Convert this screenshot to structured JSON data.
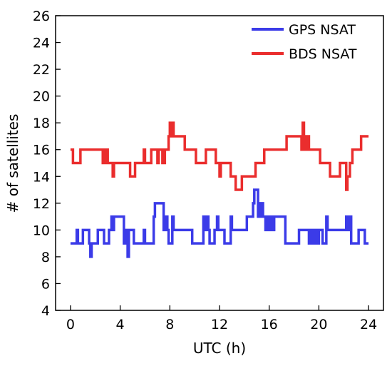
{
  "chart_data": {
    "type": "line",
    "title": "",
    "xlabel": "UTC (h)",
    "ylabel": "# of satellites",
    "xlim": [
      -1.2,
      25.2
    ],
    "ylim": [
      4,
      26
    ],
    "xticks": [
      0,
      4,
      8,
      12,
      16,
      20,
      24
    ],
    "yticks": [
      4,
      6,
      8,
      10,
      12,
      14,
      16,
      18,
      20,
      22,
      24,
      26
    ],
    "grid": false,
    "legend_position": "top-right",
    "series": [
      {
        "name": "GPS NSAT",
        "color": "#3b3be8",
        "points": [
          [
            0,
            9
          ],
          [
            0.5,
            9
          ],
          [
            0.5,
            10
          ],
          [
            0.6,
            10
          ],
          [
            0.6,
            9
          ],
          [
            1.0,
            9
          ],
          [
            1.0,
            10
          ],
          [
            1.5,
            10
          ],
          [
            1.5,
            9
          ],
          [
            1.6,
            9
          ],
          [
            1.6,
            8
          ],
          [
            1.7,
            8
          ],
          [
            1.7,
            9
          ],
          [
            2.2,
            9
          ],
          [
            2.2,
            10
          ],
          [
            2.7,
            10
          ],
          [
            2.7,
            9
          ],
          [
            3.1,
            9
          ],
          [
            3.1,
            10
          ],
          [
            3.3,
            10
          ],
          [
            3.3,
            11
          ],
          [
            3.4,
            11
          ],
          [
            3.4,
            10
          ],
          [
            3.5,
            10
          ],
          [
            3.5,
            11
          ],
          [
            4.3,
            11
          ],
          [
            4.3,
            9
          ],
          [
            4.4,
            9
          ],
          [
            4.4,
            10
          ],
          [
            4.5,
            10
          ],
          [
            4.5,
            9
          ],
          [
            4.6,
            9
          ],
          [
            4.6,
            8
          ],
          [
            4.7,
            8
          ],
          [
            4.7,
            10
          ],
          [
            5.1,
            10
          ],
          [
            5.1,
            9
          ],
          [
            5.9,
            9
          ],
          [
            5.9,
            10
          ],
          [
            6.0,
            10
          ],
          [
            6.0,
            9
          ],
          [
            6.7,
            9
          ],
          [
            6.7,
            11
          ],
          [
            6.8,
            11
          ],
          [
            6.8,
            12
          ],
          [
            7.5,
            12
          ],
          [
            7.5,
            10
          ],
          [
            7.6,
            10
          ],
          [
            7.6,
            11
          ],
          [
            7.8,
            11
          ],
          [
            7.8,
            10
          ],
          [
            7.9,
            10
          ],
          [
            7.9,
            9
          ],
          [
            8.2,
            9
          ],
          [
            8.2,
            11
          ],
          [
            8.3,
            11
          ],
          [
            8.3,
            10
          ],
          [
            9.8,
            10
          ],
          [
            9.8,
            9
          ],
          [
            10.7,
            9
          ],
          [
            10.7,
            11
          ],
          [
            10.8,
            11
          ],
          [
            10.8,
            10
          ],
          [
            10.9,
            10
          ],
          [
            10.9,
            11
          ],
          [
            11.1,
            11
          ],
          [
            11.1,
            10
          ],
          [
            11.2,
            10
          ],
          [
            11.2,
            9
          ],
          [
            11.6,
            9
          ],
          [
            11.6,
            10
          ],
          [
            11.8,
            10
          ],
          [
            11.8,
            11
          ],
          [
            11.9,
            11
          ],
          [
            11.9,
            10
          ],
          [
            12.4,
            10
          ],
          [
            12.4,
            9
          ],
          [
            12.9,
            9
          ],
          [
            12.9,
            11
          ],
          [
            13.0,
            11
          ],
          [
            13.0,
            10
          ],
          [
            14.2,
            10
          ],
          [
            14.2,
            11
          ],
          [
            14.7,
            11
          ],
          [
            14.7,
            12
          ],
          [
            14.8,
            12
          ],
          [
            14.8,
            13
          ],
          [
            15.1,
            13
          ],
          [
            15.1,
            11
          ],
          [
            15.2,
            11
          ],
          [
            15.2,
            12
          ],
          [
            15.3,
            12
          ],
          [
            15.3,
            11
          ],
          [
            15.4,
            11
          ],
          [
            15.4,
            12
          ],
          [
            15.5,
            12
          ],
          [
            15.5,
            11
          ],
          [
            15.7,
            11
          ],
          [
            15.7,
            10
          ],
          [
            15.8,
            10
          ],
          [
            15.8,
            11
          ],
          [
            16.0,
            11
          ],
          [
            16.0,
            10
          ],
          [
            16.1,
            10
          ],
          [
            16.1,
            11
          ],
          [
            16.3,
            11
          ],
          [
            16.3,
            10
          ],
          [
            16.4,
            10
          ],
          [
            16.4,
            11
          ],
          [
            17.3,
            11
          ],
          [
            17.3,
            9
          ],
          [
            18.4,
            9
          ],
          [
            18.4,
            10
          ],
          [
            19.2,
            10
          ],
          [
            19.2,
            9
          ],
          [
            19.3,
            9
          ],
          [
            19.3,
            10
          ],
          [
            19.4,
            10
          ],
          [
            19.4,
            9
          ],
          [
            19.6,
            9
          ],
          [
            19.6,
            10
          ],
          [
            19.8,
            10
          ],
          [
            19.8,
            9
          ],
          [
            20.0,
            9
          ],
          [
            20.0,
            10
          ],
          [
            20.3,
            10
          ],
          [
            20.3,
            9
          ],
          [
            20.6,
            9
          ],
          [
            20.6,
            11
          ],
          [
            20.7,
            11
          ],
          [
            20.7,
            10
          ],
          [
            22.2,
            10
          ],
          [
            22.2,
            11
          ],
          [
            22.3,
            11
          ],
          [
            22.3,
            10
          ],
          [
            22.5,
            10
          ],
          [
            22.5,
            11
          ],
          [
            22.6,
            11
          ],
          [
            22.6,
            9
          ],
          [
            23.2,
            9
          ],
          [
            23.2,
            10
          ],
          [
            23.7,
            10
          ],
          [
            23.7,
            9
          ],
          [
            24,
            9
          ]
        ]
      },
      {
        "name": "BDS NSAT",
        "color": "#ea2d2d",
        "points": [
          [
            0,
            16
          ],
          [
            0.2,
            16
          ],
          [
            0.2,
            15
          ],
          [
            0.8,
            15
          ],
          [
            0.8,
            16
          ],
          [
            2.6,
            16
          ],
          [
            2.6,
            15
          ],
          [
            2.7,
            15
          ],
          [
            2.7,
            16
          ],
          [
            2.8,
            16
          ],
          [
            2.8,
            15
          ],
          [
            2.9,
            15
          ],
          [
            2.9,
            16
          ],
          [
            3.0,
            16
          ],
          [
            3.0,
            15
          ],
          [
            3.4,
            15
          ],
          [
            3.4,
            14
          ],
          [
            3.5,
            14
          ],
          [
            3.5,
            15
          ],
          [
            4.8,
            15
          ],
          [
            4.8,
            14
          ],
          [
            5.2,
            14
          ],
          [
            5.2,
            15
          ],
          [
            5.9,
            15
          ],
          [
            5.9,
            16
          ],
          [
            6.0,
            16
          ],
          [
            6.0,
            15
          ],
          [
            6.5,
            15
          ],
          [
            6.5,
            16
          ],
          [
            7.0,
            16
          ],
          [
            7.0,
            15
          ],
          [
            7.1,
            15
          ],
          [
            7.1,
            16
          ],
          [
            7.4,
            16
          ],
          [
            7.4,
            15
          ],
          [
            7.6,
            15
          ],
          [
            7.6,
            16
          ],
          [
            7.9,
            16
          ],
          [
            7.9,
            17
          ],
          [
            8.0,
            17
          ],
          [
            8.0,
            18
          ],
          [
            8.1,
            18
          ],
          [
            8.1,
            17
          ],
          [
            8.2,
            17
          ],
          [
            8.2,
            18
          ],
          [
            8.3,
            18
          ],
          [
            8.3,
            17
          ],
          [
            9.2,
            17
          ],
          [
            9.2,
            16
          ],
          [
            10.1,
            16
          ],
          [
            10.1,
            15
          ],
          [
            10.9,
            15
          ],
          [
            10.9,
            16
          ],
          [
            11.7,
            16
          ],
          [
            11.7,
            15
          ],
          [
            12.0,
            15
          ],
          [
            12.0,
            14
          ],
          [
            12.1,
            14
          ],
          [
            12.1,
            15
          ],
          [
            12.9,
            15
          ],
          [
            12.9,
            14
          ],
          [
            13.3,
            14
          ],
          [
            13.3,
            13
          ],
          [
            13.8,
            13
          ],
          [
            13.8,
            14
          ],
          [
            14.9,
            14
          ],
          [
            14.9,
            15
          ],
          [
            15.6,
            15
          ],
          [
            15.6,
            16
          ],
          [
            17.4,
            16
          ],
          [
            17.4,
            17
          ],
          [
            18.6,
            17
          ],
          [
            18.6,
            16
          ],
          [
            18.7,
            16
          ],
          [
            18.7,
            18
          ],
          [
            18.8,
            18
          ],
          [
            18.8,
            16
          ],
          [
            19.0,
            16
          ],
          [
            19.0,
            17
          ],
          [
            19.2,
            17
          ],
          [
            19.2,
            16
          ],
          [
            20.1,
            16
          ],
          [
            20.1,
            15
          ],
          [
            20.9,
            15
          ],
          [
            20.9,
            14
          ],
          [
            21.7,
            14
          ],
          [
            21.7,
            15
          ],
          [
            22.2,
            15
          ],
          [
            22.2,
            13
          ],
          [
            22.3,
            13
          ],
          [
            22.3,
            14
          ],
          [
            22.5,
            14
          ],
          [
            22.5,
            15
          ],
          [
            22.7,
            15
          ],
          [
            22.7,
            16
          ],
          [
            23.4,
            16
          ],
          [
            23.4,
            17
          ],
          [
            24,
            17
          ]
        ]
      }
    ]
  }
}
